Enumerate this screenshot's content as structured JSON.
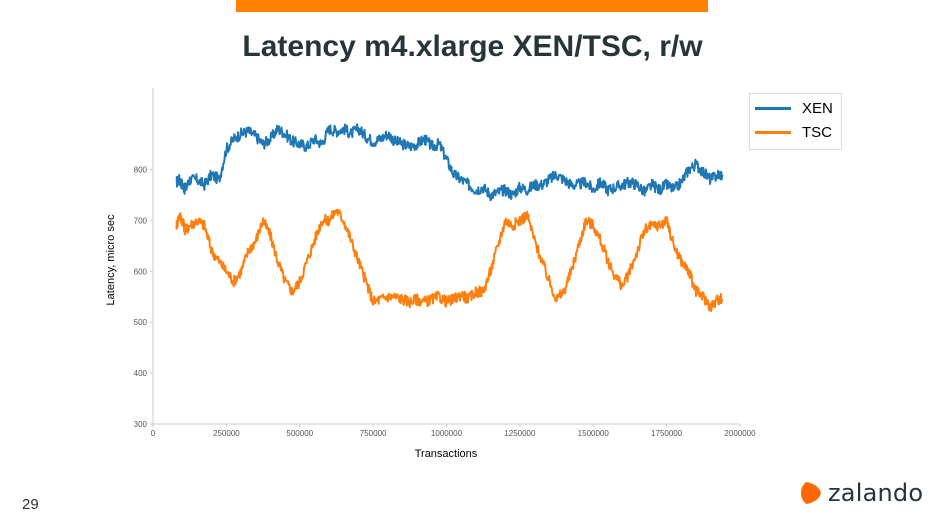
{
  "slide": {
    "title": "Latency m4.xlarge XEN/TSC, r/w",
    "page_number": "29",
    "accent_color": "#ff8100"
  },
  "logo": {
    "icon": "zalando-logo-icon",
    "text": "zalando",
    "color": "#ff6900"
  },
  "chart_data": {
    "type": "line",
    "title": "",
    "xlabel": "Transactions",
    "ylabel": "Latency, micro sec",
    "xlim": [
      0,
      2000000
    ],
    "ylim": [
      300,
      960
    ],
    "xticks": [
      0,
      250000,
      500000,
      750000,
      1000000,
      1250000,
      1500000,
      1750000,
      2000000
    ],
    "xtick_labels": [
      "0",
      "250000",
      "500000",
      "750000",
      "1000000",
      "1250000",
      "1500000",
      "1750000",
      "2000000"
    ],
    "yticks": [
      300,
      400,
      500,
      600,
      700,
      800
    ],
    "ytick_labels": [
      "300",
      "400",
      "500",
      "600",
      "700",
      "800"
    ],
    "grid": false,
    "legend_position": "top-right",
    "series": [
      {
        "name": "XEN",
        "color": "#1f77b4",
        "x": [
          80000,
          90000,
          100000,
          110000,
          125000,
          150000,
          175000,
          200000,
          225000,
          250000,
          275000,
          300000,
          325000,
          350000,
          375000,
          400000,
          425000,
          450000,
          475000,
          500000,
          525000,
          550000,
          575000,
          600000,
          625000,
          650000,
          675000,
          700000,
          725000,
          750000,
          775000,
          800000,
          825000,
          850000,
          875000,
          900000,
          925000,
          950000,
          975000,
          1000000,
          1025000,
          1050000,
          1075000,
          1100000,
          1125000,
          1150000,
          1175000,
          1200000,
          1225000,
          1250000,
          1275000,
          1300000,
          1325000,
          1350000,
          1375000,
          1400000,
          1425000,
          1450000,
          1475000,
          1500000,
          1525000,
          1550000,
          1575000,
          1600000,
          1625000,
          1650000,
          1675000,
          1700000,
          1725000,
          1750000,
          1775000,
          1800000,
          1825000,
          1850000,
          1875000,
          1900000,
          1925000,
          1940000
        ],
        "y": [
          775,
          780,
          770,
          760,
          780,
          780,
          770,
          790,
          780,
          840,
          860,
          870,
          875,
          865,
          850,
          860,
          880,
          870,
          855,
          850,
          845,
          860,
          850,
          880,
          875,
          880,
          870,
          880,
          865,
          855,
          860,
          870,
          855,
          850,
          845,
          850,
          860,
          845,
          850,
          820,
          790,
          780,
          770,
          760,
          765,
          750,
          755,
          760,
          750,
          765,
          760,
          770,
          770,
          780,
          790,
          780,
          770,
          770,
          775,
          760,
          775,
          760,
          765,
          770,
          775,
          770,
          755,
          770,
          760,
          770,
          760,
          775,
          800,
          810,
          795,
          780,
          790,
          790
        ]
      },
      {
        "name": "TSC",
        "color": "#ff7f0e",
        "x": [
          80000,
          90000,
          100000,
          110000,
          125000,
          150000,
          175000,
          200000,
          225000,
          250000,
          275000,
          300000,
          325000,
          350000,
          375000,
          400000,
          425000,
          450000,
          475000,
          500000,
          525000,
          550000,
          575000,
          600000,
          625000,
          650000,
          675000,
          700000,
          725000,
          750000,
          775000,
          800000,
          825000,
          850000,
          875000,
          900000,
          925000,
          950000,
          975000,
          1000000,
          1025000,
          1050000,
          1075000,
          1100000,
          1125000,
          1150000,
          1175000,
          1200000,
          1225000,
          1250000,
          1275000,
          1300000,
          1325000,
          1350000,
          1375000,
          1400000,
          1425000,
          1450000,
          1475000,
          1500000,
          1525000,
          1550000,
          1575000,
          1600000,
          1625000,
          1650000,
          1675000,
          1700000,
          1725000,
          1750000,
          1775000,
          1800000,
          1825000,
          1850000,
          1875000,
          1900000,
          1925000,
          1940000
        ],
        "y": [
          690,
          710,
          700,
          680,
          690,
          700,
          690,
          640,
          620,
          600,
          580,
          600,
          640,
          660,
          700,
          670,
          620,
          580,
          560,
          580,
          620,
          660,
          700,
          700,
          720,
          700,
          660,
          620,
          580,
          540,
          545,
          550,
          550,
          545,
          540,
          545,
          540,
          545,
          550,
          540,
          545,
          555,
          545,
          560,
          560,
          600,
          650,
          700,
          690,
          700,
          710,
          660,
          620,
          580,
          545,
          560,
          600,
          650,
          700,
          690,
          660,
          620,
          590,
          570,
          600,
          640,
          680,
          690,
          690,
          700,
          650,
          620,
          600,
          560,
          550,
          530,
          545,
          545
        ]
      }
    ]
  }
}
